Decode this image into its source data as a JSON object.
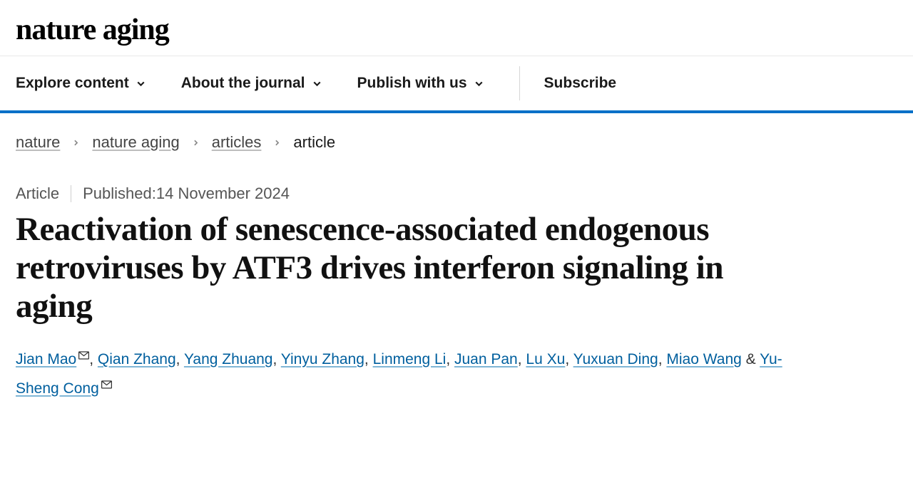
{
  "logo": "nature aging",
  "nav": {
    "items": [
      {
        "label": "Explore content",
        "has_chevron": true
      },
      {
        "label": "About the journal",
        "has_chevron": true
      },
      {
        "label": "Publish with us",
        "has_chevron": true
      }
    ],
    "subscribe": "Subscribe"
  },
  "breadcrumbs": {
    "links": [
      "nature",
      "nature aging",
      "articles"
    ],
    "current": "article"
  },
  "meta": {
    "type": "Article",
    "published_prefix": "Published: ",
    "published_date": "14 November 2024"
  },
  "title": "Reactivation of senescence-associated endogenous retroviruses by ATF3 drives interferon signaling in aging",
  "authors": [
    {
      "name": "Jian Mao",
      "corresponding": true
    },
    {
      "name": "Qian Zhang",
      "corresponding": false
    },
    {
      "name": "Yang Zhuang",
      "corresponding": false
    },
    {
      "name": "Yinyu Zhang",
      "corresponding": false
    },
    {
      "name": "Linmeng Li",
      "corresponding": false
    },
    {
      "name": "Juan Pan",
      "corresponding": false
    },
    {
      "name": "Lu Xu",
      "corresponding": false
    },
    {
      "name": "Yuxuan Ding",
      "corresponding": false
    },
    {
      "name": "Miao Wang",
      "corresponding": false
    },
    {
      "name": "Yu-Sheng Cong",
      "corresponding": true
    }
  ],
  "colors": {
    "accent": "#0070c8",
    "link": "#005f9e",
    "text": "#1a1a1a",
    "muted": "#555555",
    "border": "#e8e8e8"
  },
  "icons": {
    "chevron_down": "chevron-down-icon",
    "chevron_right": "chevron-right-icon",
    "mail": "mail-icon"
  }
}
